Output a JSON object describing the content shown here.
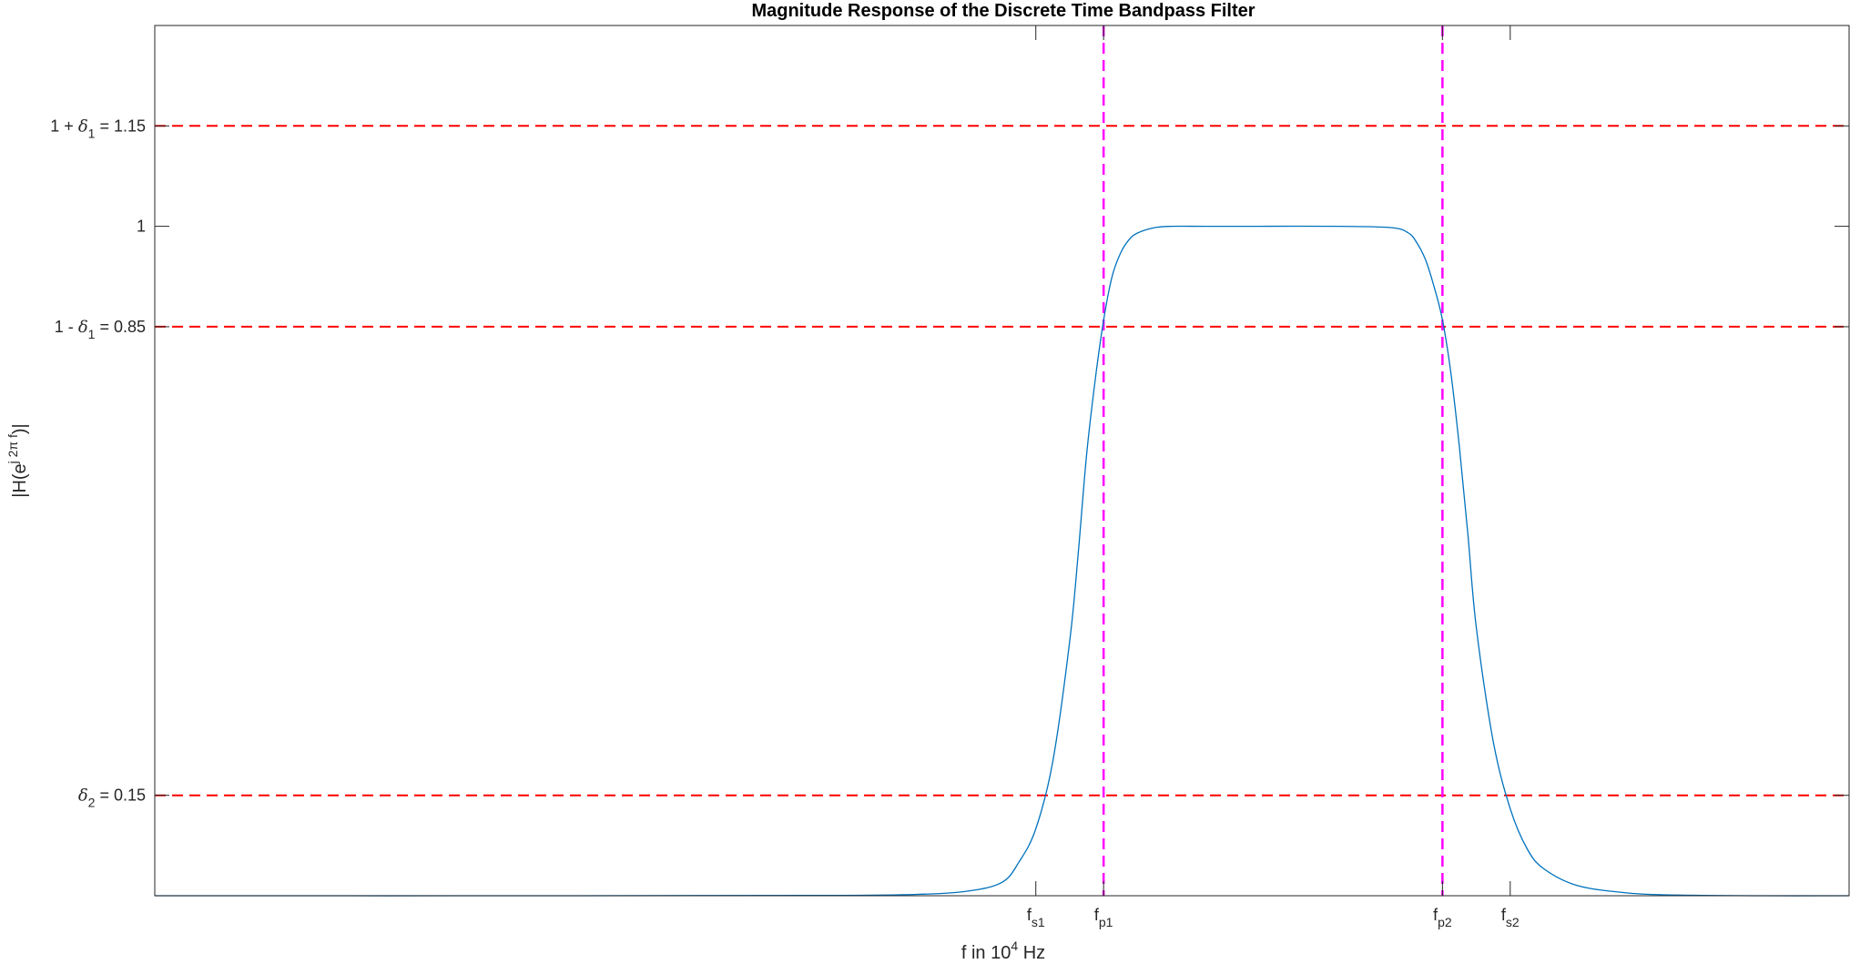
{
  "chart_data": {
    "type": "line",
    "title": "Magnitude Response of the Discrete Time Bandpass Filter",
    "xlabel": {
      "text": "f in 10",
      "sup": "4",
      "suffix": " Hz"
    },
    "ylabel": {
      "text": "|H(e",
      "sup": "j 2π f",
      "suffix": ")|"
    },
    "xlim": [
      0,
      1
    ],
    "ylim": [
      0,
      1.3
    ],
    "grid": false,
    "x_ticks": [
      {
        "value": 0.52,
        "base": "f",
        "sub": "s1"
      },
      {
        "value": 0.56,
        "base": "f",
        "sub": "p1"
      },
      {
        "value": 0.76,
        "base": "f",
        "sub": "p2"
      },
      {
        "value": 0.8,
        "base": "f",
        "sub": "s2"
      }
    ],
    "y_ticks": [
      {
        "value": 0.15,
        "prefix": "",
        "sym": "δ",
        "sub": "2",
        "suffix": " = 0.15"
      },
      {
        "value": 0.85,
        "prefix": "1 - ",
        "sym": "δ",
        "sub": "1",
        "suffix": " = 0.85"
      },
      {
        "value": 1.0,
        "prefix": "",
        "sym": "",
        "sub": "",
        "suffix": "1"
      },
      {
        "value": 1.15,
        "prefix": "1 + ",
        "sym": "δ",
        "sub": "1",
        "suffix": " = 1.15"
      }
    ],
    "reference_lines": {
      "horizontal": {
        "values": [
          0.15,
          0.85,
          1.15
        ],
        "color": "#ff0000",
        "style": "dashed"
      },
      "vertical": {
        "values": [
          0.56,
          0.76
        ],
        "color": "#ff00ff",
        "style": "dashed"
      }
    },
    "series": [
      {
        "color": "#0072bd",
        "x": [
          0,
          0.25,
          0.4,
          0.45,
          0.48,
          0.5,
          0.51,
          0.52,
          0.53,
          0.54,
          0.545,
          0.55,
          0.555,
          0.56,
          0.565,
          0.57,
          0.575,
          0.58,
          0.59,
          0.6,
          0.62,
          0.65,
          0.7,
          0.73,
          0.74,
          0.745,
          0.75,
          0.755,
          0.76,
          0.765,
          0.77,
          0.775,
          0.78,
          0.79,
          0.8,
          0.81,
          0.82,
          0.84,
          0.87,
          0.9,
          0.95,
          1.0
        ],
        "y": [
          0.0,
          0.0,
          0.0005,
          0.002,
          0.007,
          0.02,
          0.05,
          0.1,
          0.2,
          0.38,
          0.51,
          0.66,
          0.77,
          0.86,
          0.925,
          0.96,
          0.98,
          0.99,
          0.998,
          1.0,
          1.0,
          1.0,
          1.0,
          0.998,
          0.99,
          0.975,
          0.95,
          0.91,
          0.86,
          0.78,
          0.67,
          0.54,
          0.4,
          0.23,
          0.13,
          0.07,
          0.04,
          0.015,
          0.004,
          0.001,
          0.0,
          0.0
        ]
      }
    ]
  }
}
